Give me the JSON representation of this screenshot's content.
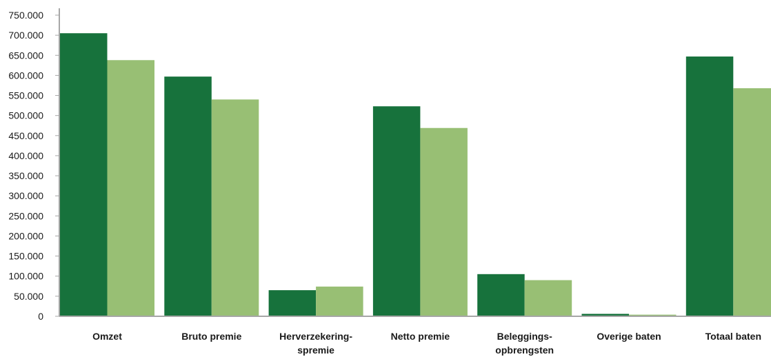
{
  "chart_data": {
    "type": "bar",
    "categories": [
      [
        "Omzet"
      ],
      [
        "Bruto premie"
      ],
      [
        "Herverzekering-",
        "spremie"
      ],
      [
        "Netto premie"
      ],
      [
        "Beleggings-",
        "opbrengsten"
      ],
      [
        "Overige baten"
      ],
      [
        "Totaal baten"
      ]
    ],
    "series": [
      {
        "values": [
          705000,
          597000,
          65000,
          523000,
          105000,
          6000,
          647000
        ],
        "color": "#17723c"
      },
      {
        "values": [
          638000,
          540000,
          74000,
          469000,
          90000,
          4000,
          568000
        ],
        "color": "#98bf74"
      }
    ],
    "ylim": [
      0,
      750000
    ],
    "yticks": [
      "0",
      "50.000",
      "100.000",
      "150.000",
      "200.000",
      "250.000",
      "300.000",
      "350.000",
      "400.000",
      "450.000",
      "500.000",
      "550.000",
      "600.000",
      "650.000",
      "700.000",
      "750.000"
    ],
    "grid": false,
    "legend": "none",
    "axis_color": "#a6a6a6"
  }
}
